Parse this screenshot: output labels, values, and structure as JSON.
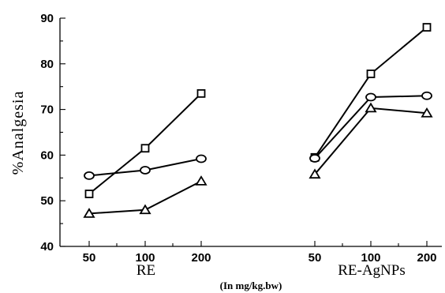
{
  "chart_data": {
    "type": "line",
    "ylabel": "%Analgesia",
    "xlabel": "(In mg/kg.bw)",
    "ylim": [
      40,
      90
    ],
    "yticks": [
      40,
      50,
      60,
      70,
      80,
      90
    ],
    "groups": [
      {
        "label": "RE",
        "doses": [
          "50",
          "100",
          "200"
        ]
      },
      {
        "label": "RE-AgNPs",
        "doses": [
          "50",
          "100",
          "200"
        ]
      }
    ],
    "series": [
      {
        "marker": "square",
        "groups": [
          {
            "values": [
              51.5,
              61.5,
              73.5
            ]
          },
          {
            "values": [
              59.5,
              77.8,
              88.0
            ]
          }
        ]
      },
      {
        "marker": "circle",
        "groups": [
          {
            "values": [
              55.5,
              56.7,
              59.2
            ]
          },
          {
            "values": [
              59.3,
              72.7,
              73.0
            ]
          }
        ]
      },
      {
        "marker": "triangle",
        "groups": [
          {
            "values": [
              47.2,
              48.0,
              54.3
            ]
          },
          {
            "values": [
              55.8,
              70.3,
              69.2
            ]
          }
        ]
      }
    ],
    "grid": false
  }
}
